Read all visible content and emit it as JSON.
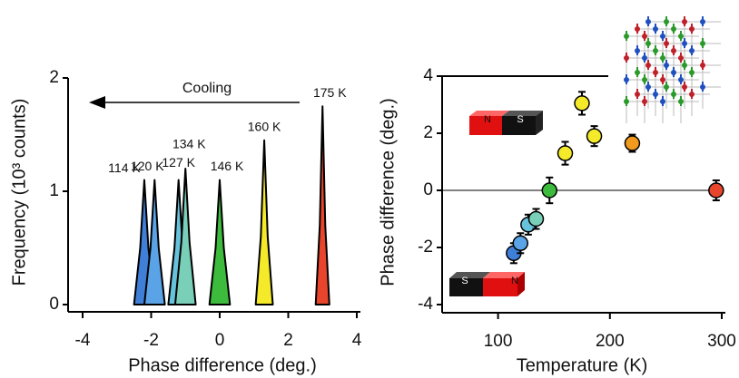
{
  "chart_data": [
    {
      "type": "density",
      "xlabel": "Phase difference (deg.)",
      "ylabel": "Frequency (10³ counts)",
      "xlim": [
        -4,
        4
      ],
      "xticks": [
        -4,
        -2,
        0,
        2,
        4
      ],
      "ylim": [
        0,
        2
      ],
      "yticks": [
        0,
        1,
        2
      ],
      "annotation": "Cooling",
      "series": [
        {
          "name": "114 K",
          "color": "#3f7fd8",
          "x": [
            -2.5,
            -2.32,
            -2.2,
            -2.08,
            -1.9
          ],
          "values": [
            0,
            0.5,
            1.1,
            0.5,
            0
          ]
        },
        {
          "name": "120 K",
          "color": "#5aa3e6",
          "x": [
            -2.2,
            -2.02,
            -1.9,
            -1.78,
            -1.6
          ],
          "values": [
            0,
            0.5,
            1.1,
            0.5,
            0
          ]
        },
        {
          "name": "127 K",
          "color": "#67c3dc",
          "x": [
            -1.5,
            -1.32,
            -1.2,
            -1.08,
            -0.9
          ],
          "values": [
            0,
            0.5,
            1.1,
            0.5,
            0
          ]
        },
        {
          "name": "134 K",
          "color": "#79cfb8",
          "x": [
            -1.3,
            -1.12,
            -1.0,
            -0.88,
            -0.7
          ],
          "values": [
            0,
            0.55,
            1.2,
            0.55,
            0
          ]
        },
        {
          "name": "146 K",
          "color": "#3dbb3d",
          "x": [
            -0.3,
            -0.12,
            0,
            0.12,
            0.3
          ],
          "values": [
            0,
            0.5,
            1.1,
            0.5,
            0
          ]
        },
        {
          "name": "160 K",
          "color": "#f4ea2a",
          "x": [
            1.05,
            1.2,
            1.3,
            1.4,
            1.55
          ],
          "values": [
            0,
            0.6,
            1.45,
            0.6,
            0
          ]
        },
        {
          "name": "175 K",
          "color": "#e8452c",
          "x": [
            2.8,
            2.92,
            3.0,
            3.08,
            3.2
          ],
          "values": [
            0,
            0.7,
            1.75,
            0.7,
            0
          ]
        }
      ]
    },
    {
      "type": "scatter",
      "xlabel": "Temperature (K)",
      "ylabel": "Phase difference (deg.)",
      "xlim": [
        50,
        300
      ],
      "xticks": [
        100,
        200,
        300
      ],
      "ylim": [
        -4,
        4
      ],
      "yticks": [
        -4,
        -2,
        0,
        2,
        4
      ],
      "x": [
        114,
        120,
        127,
        134,
        146,
        160,
        175,
        186,
        220,
        295
      ],
      "values": [
        -2.2,
        -1.85,
        -1.2,
        -1.0,
        0.0,
        1.3,
        3.05,
        1.9,
        1.65,
        0.0
      ],
      "errors": [
        0.35,
        0.35,
        0.35,
        0.35,
        0.45,
        0.4,
        0.4,
        0.35,
        0.3,
        0.35
      ],
      "colors": [
        "#3f7fd8",
        "#5aa3e6",
        "#67c3dc",
        "#79cfb8",
        "#3dbb3d",
        "#f4ea2a",
        "#f4ea2a",
        "#f4ea2a",
        "#f29a1e",
        "#e8452c"
      ],
      "magnet_labels": {
        "upper": [
          "N",
          "S"
        ],
        "lower": [
          "S",
          "N"
        ]
      }
    }
  ]
}
